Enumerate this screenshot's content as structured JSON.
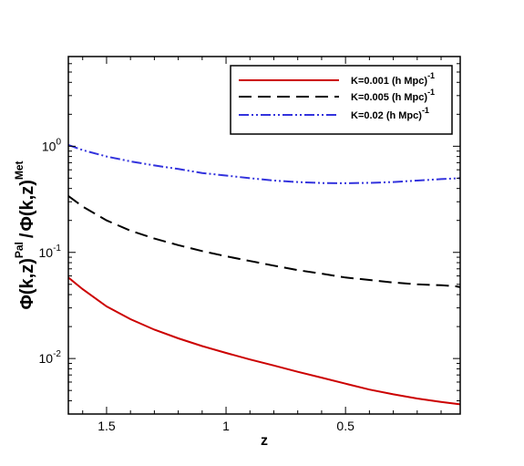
{
  "chart_data": {
    "type": "line",
    "xlabel": "z",
    "ylabel": {
      "numerator_main": "Φ(k,z)",
      "numerator_sup": "Pal",
      "separator": "/",
      "denominator_main": "Φ(k,z)",
      "denominator_sup": "Met"
    },
    "xlim": [
      1.66,
      0.02
    ],
    "ylim": [
      0.003,
      7
    ],
    "yscale": "log",
    "x_reversed": true,
    "x_ticks": [
      1.5,
      1,
      0.5
    ],
    "x_tick_labels": [
      "1.5",
      "1",
      "0.5"
    ],
    "y_major_ticks": [
      0.01,
      0.1,
      1
    ],
    "y_tick_labels": [
      {
        "base": "10",
        "exp": "-2"
      },
      {
        "base": "10",
        "exp": "-1"
      },
      {
        "base": "10",
        "exp": "0"
      }
    ],
    "grid": false,
    "legend_position": "top-right",
    "series": [
      {
        "name_main": "K=0.001 (h Mpc)",
        "name_sup": "-1",
        "color": "#cc0000",
        "style": "solid",
        "points": [
          [
            1.66,
            0.058
          ],
          [
            1.6,
            0.045
          ],
          [
            1.5,
            0.031
          ],
          [
            1.4,
            0.0235
          ],
          [
            1.3,
            0.0187
          ],
          [
            1.2,
            0.0155
          ],
          [
            1.1,
            0.0131
          ],
          [
            1.0,
            0.0113
          ],
          [
            0.9,
            0.0098
          ],
          [
            0.8,
            0.0086
          ],
          [
            0.7,
            0.0075
          ],
          [
            0.6,
            0.0066
          ],
          [
            0.5,
            0.0058
          ],
          [
            0.4,
            0.0051
          ],
          [
            0.3,
            0.0046
          ],
          [
            0.2,
            0.0042
          ],
          [
            0.1,
            0.0039
          ],
          [
            0.02,
            0.0037
          ]
        ]
      },
      {
        "name_main": "K=0.005 (h Mpc)",
        "name_sup": "-1",
        "color": "#000000",
        "style": "dashed",
        "points": [
          [
            1.66,
            0.34
          ],
          [
            1.6,
            0.27
          ],
          [
            1.5,
            0.2
          ],
          [
            1.4,
            0.16
          ],
          [
            1.3,
            0.135
          ],
          [
            1.2,
            0.117
          ],
          [
            1.1,
            0.103
          ],
          [
            1.0,
            0.092
          ],
          [
            0.9,
            0.083
          ],
          [
            0.8,
            0.075
          ],
          [
            0.7,
            0.068
          ],
          [
            0.6,
            0.063
          ],
          [
            0.5,
            0.058
          ],
          [
            0.4,
            0.055
          ],
          [
            0.3,
            0.052
          ],
          [
            0.2,
            0.05
          ],
          [
            0.1,
            0.049
          ],
          [
            0.04,
            0.048
          ],
          [
            0.02,
            0.047
          ]
        ]
      },
      {
        "name_main": "K=0.02 (h Mpc)",
        "name_sup": "-1",
        "color": "#3333dd",
        "style": "dashdotdot",
        "points": [
          [
            1.66,
            1.03
          ],
          [
            1.6,
            0.92
          ],
          [
            1.5,
            0.8
          ],
          [
            1.4,
            0.72
          ],
          [
            1.3,
            0.66
          ],
          [
            1.2,
            0.61
          ],
          [
            1.1,
            0.56
          ],
          [
            1.0,
            0.53
          ],
          [
            0.9,
            0.5
          ],
          [
            0.8,
            0.475
          ],
          [
            0.7,
            0.46
          ],
          [
            0.6,
            0.45
          ],
          [
            0.5,
            0.448
          ],
          [
            0.4,
            0.452
          ],
          [
            0.3,
            0.46
          ],
          [
            0.2,
            0.475
          ],
          [
            0.1,
            0.49
          ],
          [
            0.02,
            0.5
          ]
        ]
      }
    ]
  }
}
